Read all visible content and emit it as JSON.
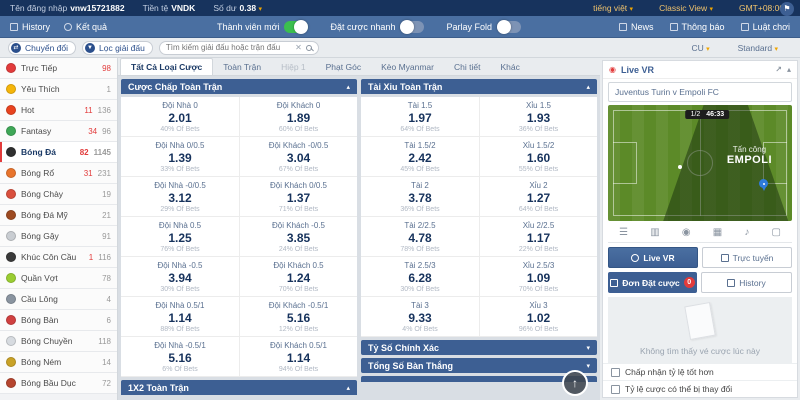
{
  "colors": {
    "topbar_navy": "#17335d",
    "nav_blue": "#4a6fa1",
    "header_blue": "#3d5f93",
    "badge_red": "#e23b3b",
    "toggle_green": "#3bbf4e",
    "pitch_green": "#5c8a28",
    "accent_orange": "#f0a500"
  },
  "userbar": {
    "login_label": "Tên đăng nhập",
    "login_value": "vnw15721882",
    "currency_label": "Tiền tệ",
    "currency_value": "VNDK",
    "balance_label": "Số dư",
    "balance_value": "0.38",
    "language": "tiếng việt",
    "view": "Classic View",
    "timezone": "GMT+08:00"
  },
  "navbar": {
    "history": "History",
    "results": "Kết quả",
    "toggles": [
      {
        "label": "Thành viên mới",
        "on": true
      },
      {
        "label": "Đặt cược nhanh",
        "on": false
      },
      {
        "label": "Parlay Fold",
        "on": false
      }
    ],
    "links": [
      "News",
      "Thông báo",
      "Luật chơi"
    ]
  },
  "filterbar": {
    "switch_button": "Chuyển đổi",
    "filter_button": "Lọc giải đấu",
    "search_placeholder": "Tìm kiếm giải đấu hoặc trận đấu",
    "odds_type": "CU",
    "view_mode": "Standard"
  },
  "sidebar": {
    "items": [
      {
        "label": "Trực Tiếp",
        "hot": "98",
        "total": "",
        "color": "#e23b3b"
      },
      {
        "label": "Yêu Thích",
        "hot": "",
        "total": "1",
        "color": "#f5b50a"
      },
      {
        "label": "Hot",
        "hot": "11",
        "total": "136",
        "color": "#e8431f"
      },
      {
        "label": "Fantasy",
        "hot": "34",
        "total": "96",
        "color": "#3fa757"
      },
      {
        "label": "Bóng Đá",
        "hot": "82",
        "total": "1145",
        "color": "#2f2f2f",
        "active": true
      },
      {
        "label": "Bóng Rổ",
        "hot": "31",
        "total": "231",
        "color": "#e8742c"
      },
      {
        "label": "Bóng Chày",
        "hot": "",
        "total": "19",
        "color": "#d94f3d"
      },
      {
        "label": "Bóng Đá Mỹ",
        "hot": "",
        "total": "21",
        "color": "#9d4a21"
      },
      {
        "label": "Bóng Gậy",
        "hot": "",
        "total": "91",
        "color": "#c9cdd2"
      },
      {
        "label": "Khúc Côn Cầu",
        "hot": "1",
        "total": "116",
        "color": "#3a3a3a"
      },
      {
        "label": "Quần Vợt",
        "hot": "",
        "total": "78",
        "color": "#9acd32"
      },
      {
        "label": "Cầu Lông",
        "hot": "",
        "total": "4",
        "color": "#8a94a0"
      },
      {
        "label": "Bóng Bàn",
        "hot": "",
        "total": "6",
        "color": "#d04040"
      },
      {
        "label": "Bóng Chuyền",
        "hot": "",
        "total": "118",
        "color": "#d7dbe0"
      },
      {
        "label": "Bóng Ném",
        "hot": "",
        "total": "14",
        "color": "#c9a227"
      },
      {
        "label": "Bóng Bầu Dục",
        "hot": "",
        "total": "72",
        "color": "#b5452e"
      }
    ]
  },
  "main": {
    "tabs": [
      {
        "label": "Tất Cả Loại Cược",
        "active": true
      },
      {
        "label": "Toàn Trận"
      },
      {
        "label": "Hiệp 1",
        "disabled": true
      },
      {
        "label": "Phạt Góc"
      },
      {
        "label": "Kèo Myanmar"
      },
      {
        "label": "Chi tiết"
      },
      {
        "label": "Khác"
      }
    ],
    "handicap": {
      "title": "Cược Chấp Toàn Trận",
      "rows": [
        {
          "home": {
            "label": "Đội Nhà 0",
            "odds": "2.01",
            "pct": "40% Of Bets"
          },
          "away": {
            "label": "Đội Khách 0",
            "odds": "1.89",
            "pct": "60% Of Bets"
          }
        },
        {
          "home": {
            "label": "Đội Nhà 0/0.5",
            "odds": "1.39",
            "pct": "33% Of Bets"
          },
          "away": {
            "label": "Đội Khách -0/0.5",
            "odds": "3.04",
            "pct": "67% Of Bets"
          }
        },
        {
          "home": {
            "label": "Đội Nhà -0/0.5",
            "odds": "3.12",
            "pct": "29% Of Bets"
          },
          "away": {
            "label": "Đội Khách 0/0.5",
            "odds": "1.37",
            "pct": "71% Of Bets"
          }
        },
        {
          "home": {
            "label": "Đội Nhà 0.5",
            "odds": "1.25",
            "pct": "76% Of Bets"
          },
          "away": {
            "label": "Đội Khách -0.5",
            "odds": "3.85",
            "pct": "24% Of Bets"
          }
        },
        {
          "home": {
            "label": "Đội Nhà -0.5",
            "odds": "3.94",
            "pct": "30% Of Bets"
          },
          "away": {
            "label": "Đội Khách 0.5",
            "odds": "1.24",
            "pct": "70% Of Bets"
          }
        },
        {
          "home": {
            "label": "Đội Nhà 0.5/1",
            "odds": "1.14",
            "pct": "88% Of Bets"
          },
          "away": {
            "label": "Đội Khách -0.5/1",
            "odds": "5.16",
            "pct": "12% Of Bets"
          }
        },
        {
          "home": {
            "label": "Đội Nhà -0.5/1",
            "odds": "5.16",
            "pct": "6% Of Bets"
          },
          "away": {
            "label": "Đội Khách 0.5/1",
            "odds": "1.14",
            "pct": "94% Of Bets"
          }
        }
      ]
    },
    "bottom_left_panel": "1X2 Toàn Trận",
    "overunder": {
      "title": "Tài Xỉu Toàn Trận",
      "rows": [
        {
          "home": {
            "label": "Tài 1.5",
            "odds": "1.97",
            "pct": "64% Of Bets"
          },
          "away": {
            "label": "Xỉu 1.5",
            "odds": "1.93",
            "pct": "36% Of Bets"
          }
        },
        {
          "home": {
            "label": "Tài 1.5/2",
            "odds": "2.42",
            "pct": "45% Of Bets"
          },
          "away": {
            "label": "Xỉu 1.5/2",
            "odds": "1.60",
            "pct": "55% Of Bets"
          }
        },
        {
          "home": {
            "label": "Tài 2",
            "odds": "3.78",
            "pct": "36% Of Bets"
          },
          "away": {
            "label": "Xỉu 2",
            "odds": "1.27",
            "pct": "64% Of Bets"
          }
        },
        {
          "home": {
            "label": "Tài 2/2.5",
            "odds": "4.78",
            "pct": "78% Of Bets"
          },
          "away": {
            "label": "Xỉu 2/2.5",
            "odds": "1.17",
            "pct": "22% Of Bets"
          }
        },
        {
          "home": {
            "label": "Tài 2.5/3",
            "odds": "6.28",
            "pct": "30% Of Bets"
          },
          "away": {
            "label": "Xỉu 2.5/3",
            "odds": "1.09",
            "pct": "70% Of Bets"
          }
        },
        {
          "home": {
            "label": "Tài 3",
            "odds": "9.33",
            "pct": "4% Of Bets"
          },
          "away": {
            "label": "Xỉu 3",
            "odds": "1.02",
            "pct": "96% Of Bets"
          }
        }
      ]
    },
    "collapsed_panels": [
      {
        "title": "Tỷ Số Chính Xác"
      },
      {
        "title": "Tổng Số Bàn Thắng"
      }
    ]
  },
  "rightbar": {
    "live_vr_title": "Live VR",
    "match": "Juventus Turin v Empoli FC",
    "period": "1/2",
    "clock": "46:33",
    "attack_label": "Tấn công",
    "attack_team": "EMPOLI",
    "btn_live_vr": "Live VR",
    "btn_online": "Trực tuyến",
    "tab_betslip": "Đơn Đặt cược",
    "betslip_count": "0",
    "tab_history": "History",
    "empty_text": "Không tìm thấy vé cược lúc này",
    "checkboxes": [
      "Chấp nhận tỷ lệ tốt hơn",
      "Tỷ lệ cược có thể bị thay đổi"
    ]
  }
}
